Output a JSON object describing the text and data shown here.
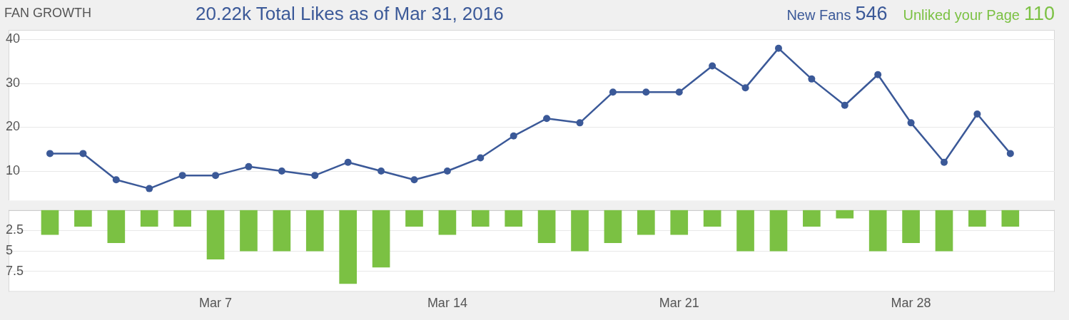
{
  "chart_data": [
    {
      "type": "line",
      "title": "FAN GROWTH",
      "subtitle": "20.22k Total Likes as of Mar 31, 2016",
      "categories": [
        null,
        null,
        null,
        null,
        null,
        null,
        null,
        null,
        null,
        null,
        null,
        null,
        null,
        null,
        null,
        null,
        null,
        null,
        null,
        null,
        null,
        null,
        null,
        null,
        null,
        null,
        null,
        null,
        null,
        null
      ],
      "series": [
        {
          "name": "New Fans",
          "color": "#3b5998",
          "values": [
            14,
            14,
            8,
            6,
            9,
            9,
            11,
            10,
            9,
            12,
            10,
            8,
            10,
            13,
            18,
            22,
            21,
            28,
            28,
            28,
            34,
            29,
            38,
            31,
            25,
            32,
            21,
            12,
            23,
            14
          ]
        }
      ],
      "ylim": [
        3.3,
        42.2
      ],
      "yticks": [
        10,
        20,
        30,
        40
      ],
      "grid": "y",
      "marker": "circle",
      "tick_labels": "y",
      "annotations": [
        "546"
      ]
    },
    {
      "type": "bar",
      "categories": [
        null,
        null,
        null,
        null,
        null,
        "Mar 7",
        null,
        null,
        null,
        null,
        null,
        null,
        "Mar 14",
        null,
        null,
        null,
        null,
        null,
        null,
        "Mar 21",
        null,
        null,
        null,
        null,
        null,
        null,
        "Mar 28",
        null,
        null,
        null
      ],
      "series": [
        {
          "name": "Unliked your Page",
          "color": "#7bc143",
          "values": [
            3,
            2,
            4,
            2,
            2,
            6,
            5,
            5,
            5,
            9,
            7,
            2,
            3,
            2,
            2,
            4,
            5,
            4,
            3,
            3,
            2,
            5,
            5,
            2,
            1,
            5,
            4,
            5,
            2,
            2
          ]
        }
      ],
      "ylim": [
        10,
        0
      ],
      "yticks": [
        2.5,
        5,
        7.5
      ],
      "grid": "y",
      "annotations": [
        "110"
      ]
    }
  ]
}
